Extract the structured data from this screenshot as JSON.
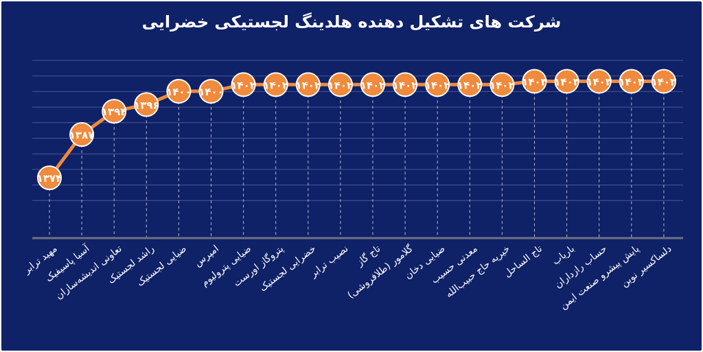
{
  "colors": {
    "background": "#0f2167",
    "grid": "#4a5895",
    "baseline": "#6f7280",
    "dashed": "#b9bdcc",
    "line": "#f08a3c",
    "marker": "#f08a3c",
    "marker_border": "#ffffff",
    "text": "#ffffff"
  },
  "chart_data": {
    "type": "line",
    "title": "شرکت های تشکیل دهنده هلدینگ لجستیکی خضرایی",
    "xlabel": "",
    "ylabel": "",
    "ylim": [
      1360,
      1410
    ],
    "grid": true,
    "categories": [
      "مهید ترابر",
      "آسیا پاسیفیک",
      "تعاونی اندیشه‌سازان",
      "راشد لجستیک",
      "ضیایی لجستیک",
      "امپرس",
      "ضیایی پترولیوم",
      "پتروگاز اورست",
      "خضرایی لجستیک",
      "نصیب ترابر",
      "تاج گاز",
      "گلامور (طلافروشی)",
      "ضیایی دخان",
      "معدنی حسیب",
      "خیریه حاج حبیب‌الله",
      "تاج الساحل",
      "باریاب",
      "حساب رازداران",
      "پایش پیشرو صنعت ایمن",
      "دلساکسیر نوین"
    ],
    "values": [
      1374,
      1387,
      1394,
      1396,
      1400,
      1400,
      1402,
      1402,
      1402,
      1402,
      1402,
      1402,
      1402,
      1402,
      1402,
      1403,
      1403,
      1403,
      1403,
      1403
    ],
    "data_labels": [
      "۱۳۷۴",
      "۱۳۸۷",
      "۱۳۹۴",
      "۱۳۹۶",
      "۱۴۰۰",
      "۱۴۰۰",
      "۱۴۰۲",
      "۱۴۰۲",
      "۱۴۰۲",
      "۱۴۰۲",
      "۱۴۰۲",
      "۱۴۰۲",
      "۱۴۰۲",
      "۱۴۰۲",
      "۱۴۰۲",
      "۱۴۰۳",
      "۱۴۰۳",
      "۱۴۰۳",
      "۱۴۰۳",
      "۱۴۰۳"
    ]
  }
}
